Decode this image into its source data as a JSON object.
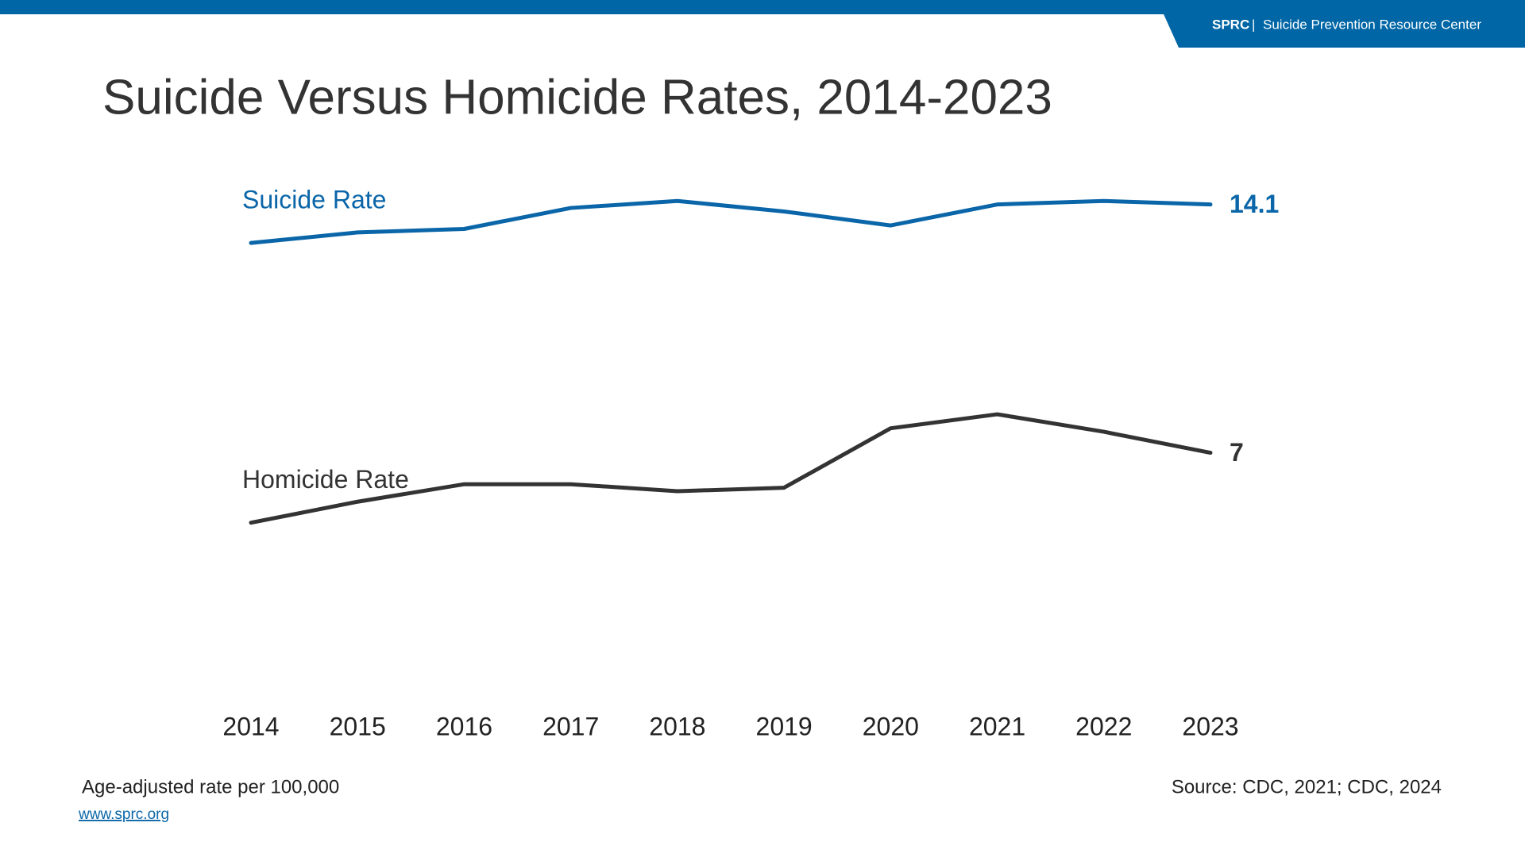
{
  "header": {
    "org": "SPRC",
    "separator": "|",
    "name": "Suicide Prevention Resource Center"
  },
  "chart_data": {
    "type": "line",
    "title": "Suicide Versus Homicide Rates, 2014-2023",
    "categories": [
      "2014",
      "2015",
      "2016",
      "2017",
      "2018",
      "2019",
      "2020",
      "2021",
      "2022",
      "2023"
    ],
    "series": [
      {
        "name": "Suicide Rate",
        "color": "#0a66a8",
        "values": [
          13.0,
          13.3,
          13.4,
          14.0,
          14.2,
          13.9,
          13.5,
          14.1,
          14.2,
          14.1
        ]
      },
      {
        "name": "Homicide Rate",
        "color": "#333333",
        "values": [
          5.0,
          5.6,
          6.1,
          6.1,
          5.9,
          6.0,
          7.7,
          8.1,
          7.6,
          7
        ]
      }
    ],
    "ylim": [
      0,
      15
    ],
    "note": "Age-adjusted rate per 100,000",
    "source": "Source: CDC, 2021; CDC, 2024"
  },
  "footer": {
    "url": "www.sprc.org"
  }
}
